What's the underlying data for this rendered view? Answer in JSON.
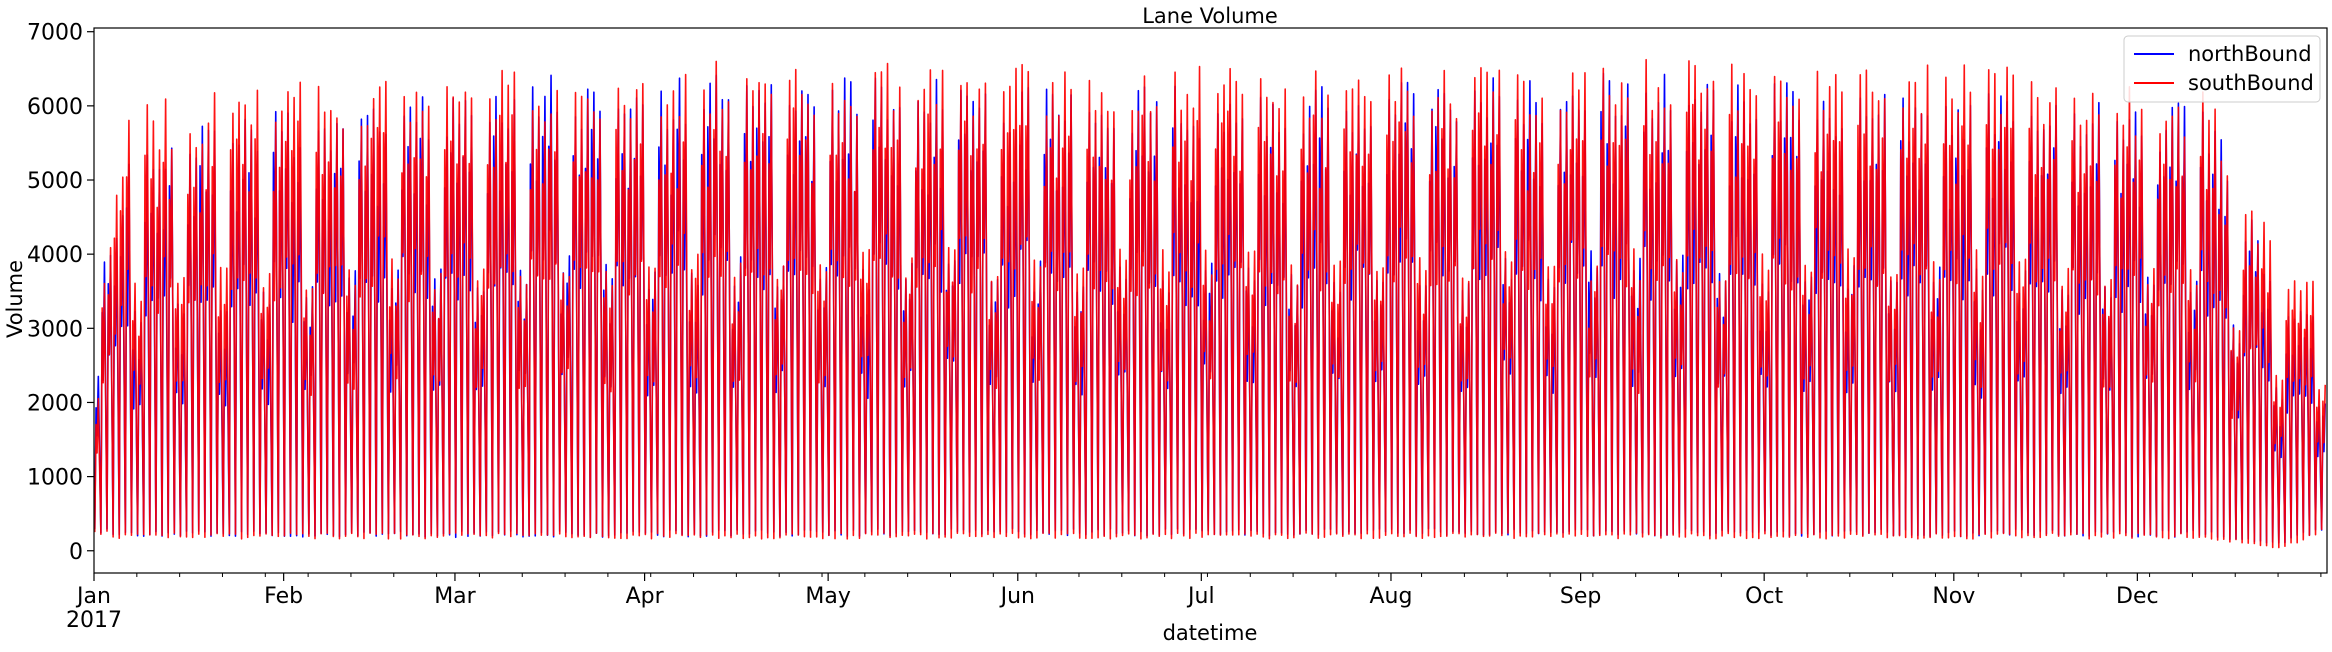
{
  "chart_data": {
    "type": "line",
    "title": "Lane Volume",
    "xlabel": "datetime",
    "ylabel": "Volume",
    "xlim": [
      "2017-01-01",
      "2017-12-31"
    ],
    "ylim": [
      -300,
      7050
    ],
    "y_ticks": [
      0,
      1000,
      2000,
      3000,
      4000,
      5000,
      6000,
      7000
    ],
    "x_ticks": [
      {
        "date": "2017-01-01",
        "label": "Jan",
        "sublabel": "2017"
      },
      {
        "date": "2017-02-01",
        "label": "Feb"
      },
      {
        "date": "2017-03-01",
        "label": "Mar"
      },
      {
        "date": "2017-04-01",
        "label": "Apr"
      },
      {
        "date": "2017-05-01",
        "label": "May"
      },
      {
        "date": "2017-06-01",
        "label": "Jun"
      },
      {
        "date": "2017-07-01",
        "label": "Jul"
      },
      {
        "date": "2017-08-01",
        "label": "Aug"
      },
      {
        "date": "2017-09-01",
        "label": "Sep"
      },
      {
        "date": "2017-10-01",
        "label": "Oct"
      },
      {
        "date": "2017-11-01",
        "label": "Nov"
      },
      {
        "date": "2017-12-01",
        "label": "Dec"
      }
    ],
    "legend_position": "top-right",
    "grid": false,
    "series": [
      {
        "name": "northBound",
        "color": "#0000ff",
        "points": [
          [
            "2017-01-01T00:00",
            300
          ],
          [
            "2017-01-01T17:00",
            3800
          ],
          [
            "2017-01-06T03:00",
            250
          ],
          [
            "2017-01-06T17:00",
            5200
          ],
          [
            "2017-01-15T03:00",
            230
          ],
          [
            "2017-01-15T17:00",
            5700
          ],
          [
            "2017-01-27T03:00",
            220
          ],
          [
            "2017-01-27T17:00",
            5800
          ],
          [
            "2017-02-10T03:00",
            220
          ],
          [
            "2017-02-10T17:00",
            6000
          ],
          [
            "2017-02-26T03:00",
            220
          ],
          [
            "2017-02-26T17:00",
            6100
          ],
          [
            "2017-03-12T03:00",
            230
          ],
          [
            "2017-03-12T17:00",
            6300
          ],
          [
            "2017-03-29T03:00",
            230
          ],
          [
            "2017-03-29T17:00",
            6300
          ],
          [
            "2017-04-16T03:00",
            240
          ],
          [
            "2017-04-16T17:00",
            6300
          ],
          [
            "2017-05-05T03:00",
            240
          ],
          [
            "2017-05-05T17:00",
            6300
          ],
          [
            "2017-05-22T03:00",
            250
          ],
          [
            "2017-05-22T17:00",
            6300
          ],
          [
            "2017-06-08T03:00",
            250
          ],
          [
            "2017-06-08T17:00",
            6200
          ],
          [
            "2017-06-25T03:00",
            250
          ],
          [
            "2017-06-25T17:00",
            6200
          ],
          [
            "2017-07-12T03:00",
            250
          ],
          [
            "2017-07-12T17:00",
            6100
          ],
          [
            "2017-07-30T03:00",
            250
          ],
          [
            "2017-07-30T17:00",
            6200
          ],
          [
            "2017-08-17T03:00",
            250
          ],
          [
            "2017-08-17T17:00",
            6300
          ],
          [
            "2017-09-03T03:00",
            250
          ],
          [
            "2017-09-03T17:00",
            6400
          ],
          [
            "2017-09-20T03:00",
            250
          ],
          [
            "2017-09-20T17:00",
            6300
          ],
          [
            "2017-10-07T03:00",
            240
          ],
          [
            "2017-10-07T17:00",
            6200
          ],
          [
            "2017-10-24T03:00",
            240
          ],
          [
            "2017-10-24T17:00",
            6100
          ],
          [
            "2017-11-10T03:00",
            240
          ],
          [
            "2017-11-10T17:00",
            6100
          ],
          [
            "2017-11-27T03:00",
            230
          ],
          [
            "2017-11-27T17:00",
            6000
          ],
          [
            "2017-12-12T03:00",
            230
          ],
          [
            "2017-12-12T17:00",
            5900
          ],
          [
            "2017-12-24T03:00",
            100
          ],
          [
            "2017-12-24T17:00",
            3300
          ],
          [
            "2017-12-31T00:00",
            300
          ]
        ]
      },
      {
        "name": "southBound",
        "color": "#ff0000",
        "points": [
          [
            "2017-01-01T00:00",
            250
          ],
          [
            "2017-01-01T17:00",
            3500
          ],
          [
            "2017-01-06T03:00",
            200
          ],
          [
            "2017-01-06T17:00",
            6000
          ],
          [
            "2017-01-15T03:00",
            200
          ],
          [
            "2017-01-15T17:00",
            6000
          ],
          [
            "2017-01-27T03:00",
            200
          ],
          [
            "2017-01-27T17:00",
            6200
          ],
          [
            "2017-02-10T03:00",
            200
          ],
          [
            "2017-02-10T17:00",
            6300
          ],
          [
            "2017-02-26T03:00",
            200
          ],
          [
            "2017-02-26T17:00",
            6300
          ],
          [
            "2017-03-12T03:00",
            200
          ],
          [
            "2017-03-12T17:00",
            6400
          ],
          [
            "2017-03-29T03:00",
            200
          ],
          [
            "2017-03-29T17:00",
            6400
          ],
          [
            "2017-04-16T03:00",
            200
          ],
          [
            "2017-04-16T17:00",
            6500
          ],
          [
            "2017-05-05T03:00",
            200
          ],
          [
            "2017-05-05T17:00",
            6500
          ],
          [
            "2017-05-22T03:00",
            200
          ],
          [
            "2017-05-22T17:00",
            6500
          ],
          [
            "2017-06-08T03:00",
            200
          ],
          [
            "2017-06-08T17:00",
            6400
          ],
          [
            "2017-06-25T03:00",
            200
          ],
          [
            "2017-06-25T17:00",
            6500
          ],
          [
            "2017-07-12T03:00",
            200
          ],
          [
            "2017-07-12T17:00",
            6400
          ],
          [
            "2017-07-30T03:00",
            200
          ],
          [
            "2017-07-30T17:00",
            6400
          ],
          [
            "2017-08-17T03:00",
            200
          ],
          [
            "2017-08-17T17:00",
            6500
          ],
          [
            "2017-09-03T03:00",
            200
          ],
          [
            "2017-09-03T17:00",
            6500
          ],
          [
            "2017-09-20T03:00",
            200
          ],
          [
            "2017-09-20T17:00",
            6500
          ],
          [
            "2017-10-07T03:00",
            200
          ],
          [
            "2017-10-07T17:00",
            6400
          ],
          [
            "2017-10-24T03:00",
            200
          ],
          [
            "2017-10-24T17:00",
            6500
          ],
          [
            "2017-11-10T03:00",
            200
          ],
          [
            "2017-11-10T17:00",
            6400
          ],
          [
            "2017-11-27T03:00",
            200
          ],
          [
            "2017-11-27T17:00",
            6200
          ],
          [
            "2017-12-12T03:00",
            200
          ],
          [
            "2017-12-12T17:00",
            6100
          ],
          [
            "2017-12-24T03:00",
            40
          ],
          [
            "2017-12-24T17:00",
            3800
          ],
          [
            "2017-12-31T00:00",
            250
          ]
        ]
      }
    ]
  }
}
